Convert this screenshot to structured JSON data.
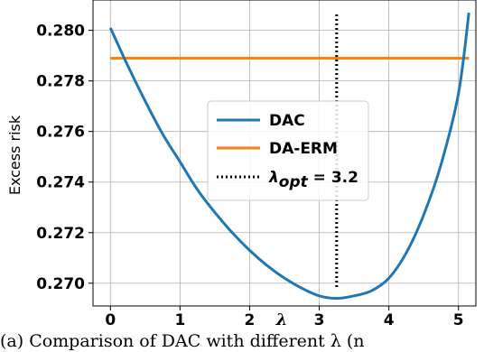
{
  "chart_data": {
    "type": "line",
    "xlabel": "λ",
    "ylabel": "Excess risk",
    "xlim": [
      -0.25,
      5.25
    ],
    "ylim": [
      0.2691,
      0.2812
    ],
    "xticks": [
      "0",
      "1",
      "2",
      "3",
      "4",
      "5"
    ],
    "yticks": [
      "0.270",
      "0.272",
      "0.274",
      "0.276",
      "0.278",
      "0.280"
    ],
    "grid": true,
    "legend_position": "center-right",
    "series": [
      {
        "name": "DAC",
        "color": "#1f77b4",
        "style": "solid",
        "x": [
          0,
          0.25,
          0.5,
          0.75,
          1.0,
          1.25,
          1.5,
          1.75,
          2.0,
          2.25,
          2.5,
          2.75,
          3.0,
          3.25,
          3.5,
          3.75,
          4.0,
          4.25,
          4.5,
          4.75,
          5.0,
          5.15
        ],
        "y": [
          0.2801,
          0.2786,
          0.2772,
          0.2759,
          0.2748,
          0.2737,
          0.2728,
          0.272,
          0.2713,
          0.2707,
          0.2702,
          0.2698,
          0.2695,
          0.2694,
          0.2695,
          0.2697,
          0.2702,
          0.2712,
          0.2727,
          0.2747,
          0.2775,
          0.2807
        ]
      },
      {
        "name": "DA-ERM",
        "color": "#ff7f0e",
        "style": "solid",
        "x": [
          0,
          5.15
        ],
        "y": [
          0.2789,
          0.2789
        ]
      }
    ],
    "vlines": [
      {
        "name_prefix": "λ",
        "name_subscript": "opt",
        "name_suffix": " = 3.2",
        "x": 3.25,
        "color": "#000000",
        "style": "dotted"
      }
    ]
  },
  "caption": "(a) Comparison of DAC with different λ (n"
}
